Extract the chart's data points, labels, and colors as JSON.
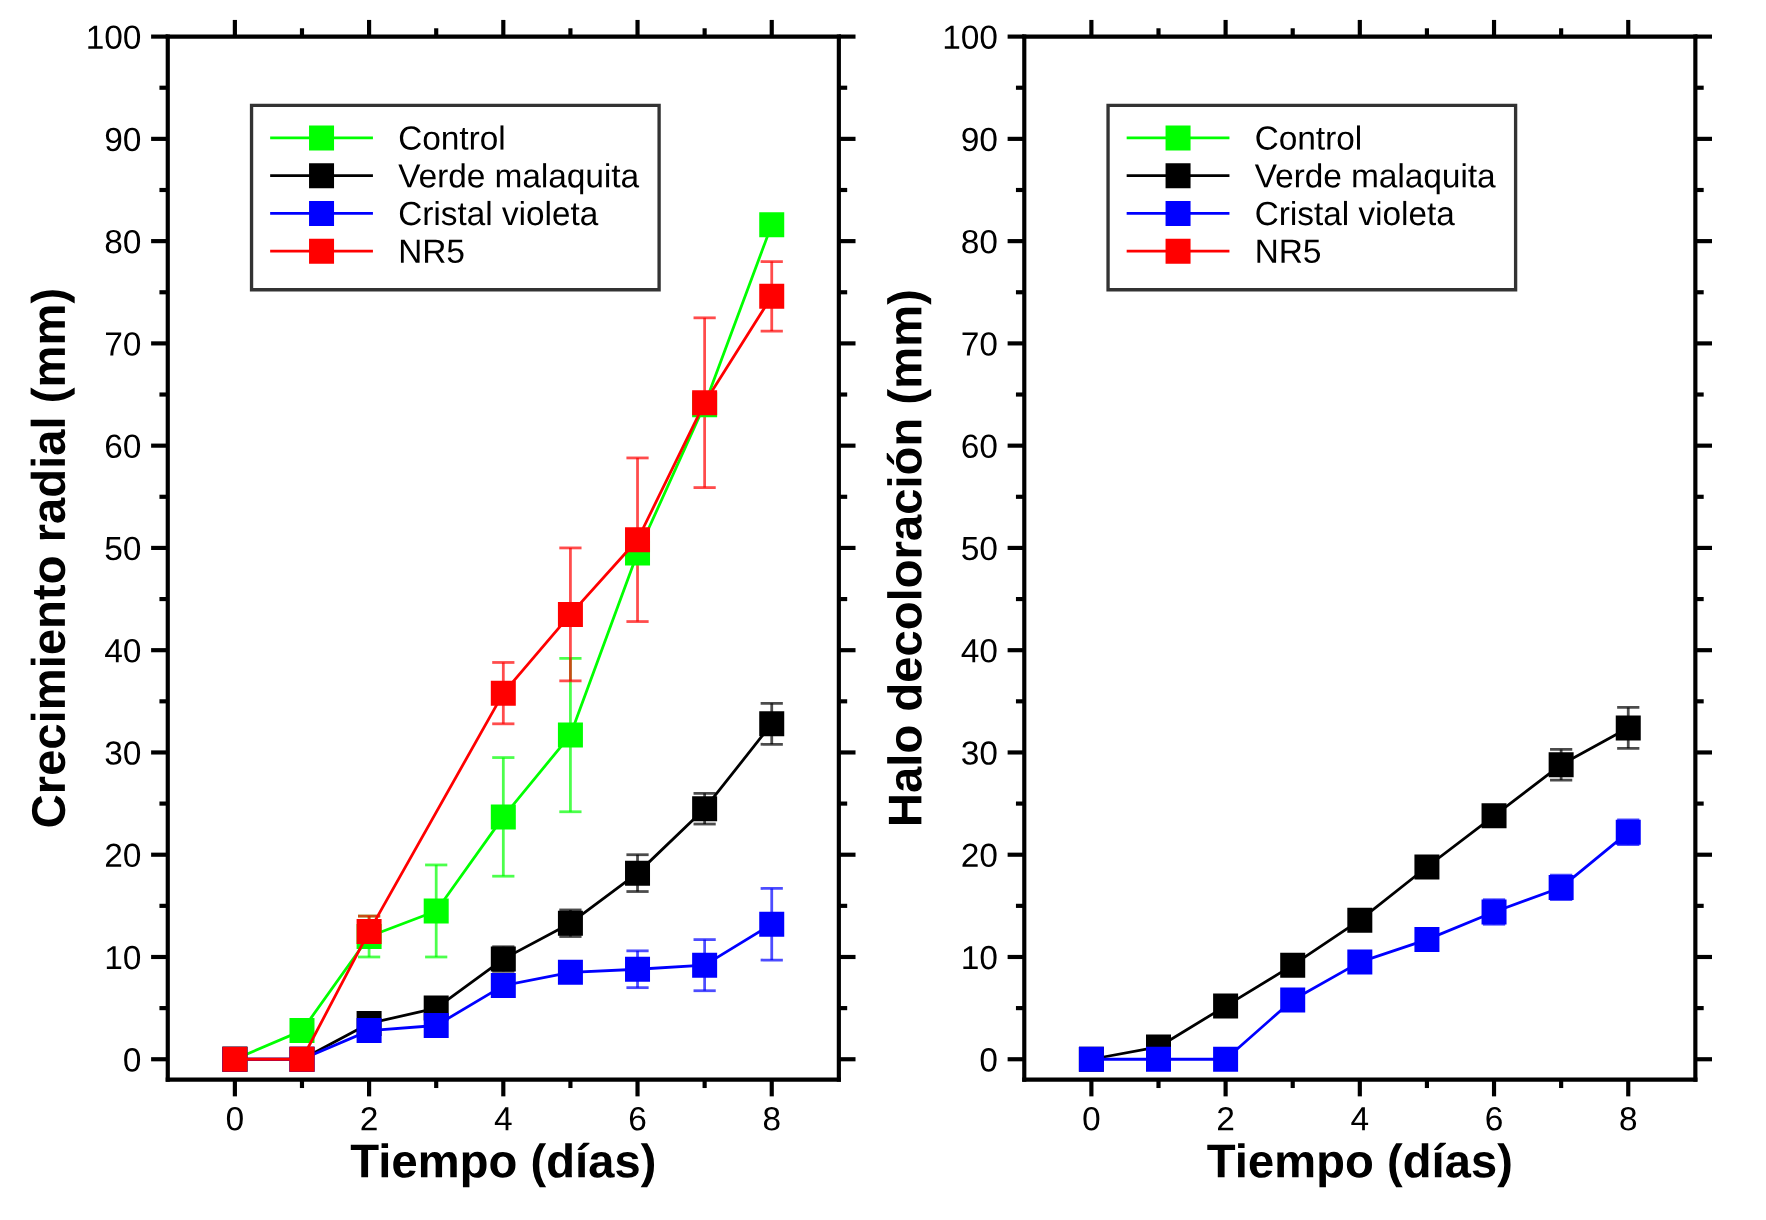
{
  "chart_data": [
    {
      "type": "line",
      "xlabel": "Tiempo (días)",
      "ylabel": "Crecimiento radial (mm)",
      "xlim": [
        -1,
        9
      ],
      "ylim": [
        -2,
        100
      ],
      "xticks": [
        0,
        {
          "value": 1,
          "label": null
        },
        2,
        {
          "value": 3,
          "label": null
        },
        4,
        {
          "value": 5,
          "label": null
        },
        6,
        {
          "value": 7,
          "label": null
        },
        8
      ],
      "yticks": [
        0,
        {
          "value": 5,
          "label": null
        },
        10,
        {
          "value": 15,
          "label": null
        },
        20,
        {
          "value": 25,
          "label": null
        },
        30,
        {
          "value": 35,
          "label": null
        },
        40,
        {
          "value": 45,
          "label": null
        },
        50,
        {
          "value": 55,
          "label": null
        },
        60,
        {
          "value": 65,
          "label": null
        },
        70,
        {
          "value": 75,
          "label": null
        },
        80,
        {
          "value": 85,
          "label": null
        },
        90,
        {
          "value": 95,
          "label": null
        },
        100
      ],
      "marker": "square",
      "legend": "top left",
      "grid": false,
      "series": [
        {
          "name": "Control",
          "color": "#00ff00",
          "x": [
            0,
            1,
            2,
            3,
            4,
            5,
            6,
            7,
            8
          ],
          "values": [
            0,
            2.8,
            12,
            14.5,
            23.7,
            31.7,
            49.5,
            64,
            81.6
          ],
          "errors": [
            null,
            null,
            2,
            4.5,
            5.8,
            7.5,
            null,
            null,
            null
          ]
        },
        {
          "name": "Verde malaquita",
          "color": "#000000",
          "x": [
            0,
            1,
            2,
            3,
            4,
            5,
            6,
            7,
            8
          ],
          "values": [
            0,
            0,
            3.5,
            5,
            9.8,
            13.3,
            18.2,
            24.5,
            32.8
          ],
          "errors": [
            null,
            null,
            null,
            null,
            1.2,
            1.3,
            1.8,
            1.5,
            2
          ]
        },
        {
          "name": "Cristal violeta",
          "color": "#0000ff",
          "x": [
            0,
            1,
            2,
            3,
            4,
            5,
            6,
            7,
            8
          ],
          "values": [
            0,
            0,
            2.8,
            3.3,
            7.2,
            8.5,
            8.8,
            9.2,
            13.2
          ],
          "errors": [
            null,
            null,
            null,
            null,
            null,
            0.5,
            1.8,
            2.5,
            3.5
          ]
        },
        {
          "name": "NR5",
          "color": "#ff0000",
          "x": [
            0,
            1,
            2,
            4,
            5,
            6,
            7,
            8
          ],
          "values": [
            0,
            0,
            12.5,
            35.8,
            43.5,
            50.8,
            64.2,
            74.6
          ],
          "errors": [
            null,
            null,
            1.5,
            3,
            6.5,
            8,
            8.3,
            3.4
          ]
        }
      ]
    },
    {
      "type": "line",
      "xlabel": "Tiempo (días)",
      "ylabel": "Halo decoloración (mm)",
      "xlim": [
        -1,
        9
      ],
      "ylim": [
        -2,
        100
      ],
      "xticks": [
        0,
        {
          "value": 1,
          "label": null
        },
        2,
        {
          "value": 3,
          "label": null
        },
        4,
        {
          "value": 5,
          "label": null
        },
        6,
        {
          "value": 7,
          "label": null
        },
        8
      ],
      "yticks": [
        0,
        {
          "value": 5,
          "label": null
        },
        10,
        {
          "value": 15,
          "label": null
        },
        20,
        {
          "value": 25,
          "label": null
        },
        30,
        {
          "value": 35,
          "label": null
        },
        40,
        {
          "value": 45,
          "label": null
        },
        50,
        {
          "value": 55,
          "label": null
        },
        60,
        {
          "value": 65,
          "label": null
        },
        70,
        {
          "value": 75,
          "label": null
        },
        80,
        {
          "value": 85,
          "label": null
        },
        90,
        {
          "value": 95,
          "label": null
        },
        100
      ],
      "marker": "square",
      "legend": "top left",
      "grid": false,
      "series": [
        {
          "name": "Control",
          "color": "#00ff00"
        },
        {
          "name": "Verde malaquita",
          "color": "#000000",
          "x": [
            0,
            1,
            2,
            3,
            4,
            5,
            6,
            7,
            8
          ],
          "values": [
            0,
            1.2,
            5.2,
            9.2,
            13.6,
            18.8,
            23.8,
            28.8,
            32.4
          ],
          "errors": [
            null,
            null,
            null,
            null,
            null,
            null,
            1,
            1.5,
            2
          ]
        },
        {
          "name": "Cristal violeta",
          "color": "#0000ff",
          "x": [
            0,
            1,
            2,
            3,
            4,
            5,
            6,
            7,
            8
          ],
          "values": [
            0,
            0,
            0,
            5.8,
            9.5,
            11.7,
            14.4,
            16.8,
            22.2
          ],
          "errors": [
            null,
            null,
            null,
            null,
            null,
            null,
            1.2,
            1.2,
            1.2
          ]
        },
        {
          "name": "NR5",
          "color": "#ff0000"
        }
      ]
    }
  ]
}
